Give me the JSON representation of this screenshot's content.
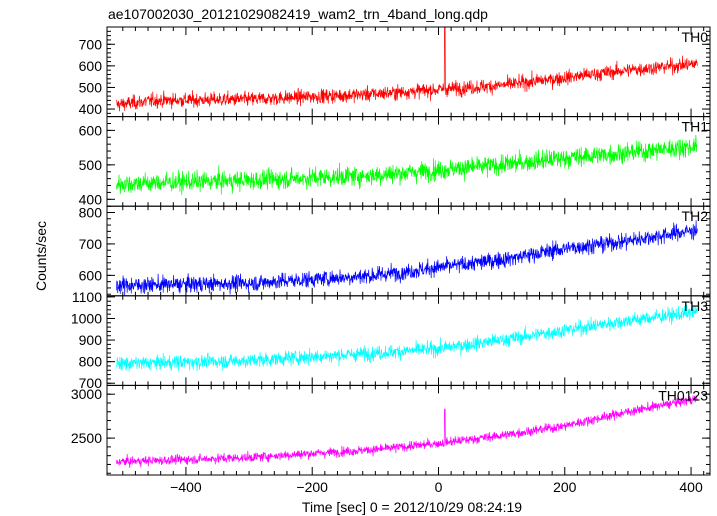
{
  "title": "ae107002030_20121029082419_wam2_trn_4band_long.qdp",
  "ylabel": "Counts/sec",
  "xlabel": "Time [sec] 0 = 2012/10/29 08:24:19",
  "chart_data": {
    "type": "line",
    "title": "ae107002030_20121029082419_wam2_trn_4band_long.qdp",
    "xlabel": "Time [sec] 0 = 2012/10/29 08:24:19",
    "ylabel": "Counts/sec",
    "xlim": [
      -525,
      430
    ],
    "xticks": [
      "-400",
      "-200",
      "0",
      "200",
      "400"
    ],
    "grid": false,
    "panels": [
      {
        "name": "TH0",
        "color": "#ff0000",
        "ylim": [
          365,
          780
        ],
        "yticks": [
          "400",
          "500",
          "600",
          "700"
        ],
        "trend": [
          [
            -510,
            420
          ],
          [
            -450,
            440
          ],
          [
            -300,
            445
          ],
          [
            -100,
            470
          ],
          [
            0,
            490
          ],
          [
            100,
            510
          ],
          [
            200,
            545
          ],
          [
            300,
            580
          ],
          [
            410,
            610
          ]
        ],
        "noise": 28,
        "spikes": [
          [
            10,
            780
          ]
        ]
      },
      {
        "name": "TH1",
        "color": "#00ff00",
        "ylim": [
          380,
          640
        ],
        "yticks": [
          "400",
          "500",
          "600"
        ],
        "trend": [
          [
            -510,
            445
          ],
          [
            -300,
            455
          ],
          [
            -100,
            470
          ],
          [
            0,
            485
          ],
          [
            100,
            500
          ],
          [
            200,
            520
          ],
          [
            300,
            535
          ],
          [
            410,
            555
          ]
        ],
        "noise": 24,
        "spikes": []
      },
      {
        "name": "TH2",
        "color": "#0000ff",
        "ylim": [
          535,
          820
        ],
        "yticks": [
          "600",
          "700",
          "800"
        ],
        "trend": [
          [
            -510,
            568
          ],
          [
            -300,
            575
          ],
          [
            -100,
            600
          ],
          [
            0,
            625
          ],
          [
            100,
            650
          ],
          [
            200,
            685
          ],
          [
            300,
            710
          ],
          [
            410,
            745
          ]
        ],
        "noise": 22,
        "spikes": []
      },
      {
        "name": "TH3",
        "color": "#00ffff",
        "ylim": [
          690,
          1105
        ],
        "yticks": [
          "700",
          "800",
          "900",
          "1000",
          "1100"
        ],
        "trend": [
          [
            -510,
            790
          ],
          [
            -300,
            805
          ],
          [
            -100,
            840
          ],
          [
            0,
            860
          ],
          [
            100,
            900
          ],
          [
            200,
            945
          ],
          [
            300,
            990
          ],
          [
            410,
            1030
          ]
        ],
        "noise": 28,
        "spikes": []
      },
      {
        "name": "TH0123",
        "color": "#ff00ff",
        "ylim": [
          2080,
          3100
        ],
        "yticks": [
          "2500",
          "3000"
        ],
        "trend": [
          [
            -510,
            2230
          ],
          [
            -300,
            2280
          ],
          [
            -100,
            2370
          ],
          [
            0,
            2440
          ],
          [
            100,
            2530
          ],
          [
            200,
            2640
          ],
          [
            300,
            2800
          ],
          [
            410,
            2950
          ]
        ],
        "noise": 45,
        "spikes": [
          [
            10,
            2830
          ]
        ]
      }
    ]
  }
}
